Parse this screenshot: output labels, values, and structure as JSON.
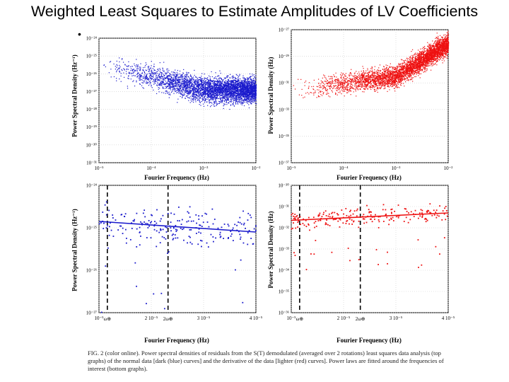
{
  "slide": {
    "title": "Weighted Least Squares to Estimate Amplitudes of LV Coefficients",
    "bullet": "•"
  },
  "colors": {
    "blue": "#1a1acc",
    "red": "#ee1111"
  },
  "chart_data": [
    {
      "id": "top-left",
      "type": "scatter",
      "color": "blue",
      "xlabel": "Fourier Frequency (Hz)",
      "ylabel": "Power Spectral Density (Hz⁻¹)",
      "xlim_log": [
        -5,
        -2
      ],
      "ylim_log": [
        -31,
        -23
      ],
      "xticks": [
        "10⁻⁵",
        "10⁻⁴",
        "10⁻³",
        "10⁻²"
      ],
      "yticks": [
        "10⁻²⁴",
        "10⁻²⁵",
        "10⁻²⁶",
        "10⁻²⁷",
        "10⁻²⁸",
        "10⁻²⁹",
        "10⁻³⁰",
        "10⁻³¹"
      ],
      "trend": {
        "log_psd_at_1e-5": -24.6,
        "log_psd_at_1e-3": -26.3,
        "log_psd_at_1e-2": -26.3
      }
    },
    {
      "id": "top-right",
      "type": "scatter",
      "color": "red",
      "xlabel": "Fourier Frequency (Hz)",
      "ylabel": "Power Spectral Density (Hz)",
      "xlim_log": [
        -5,
        -2
      ],
      "ylim_log": [
        -37,
        -27
      ],
      "xticks": [
        "10⁻⁵",
        "10⁻⁴",
        "10⁻³",
        "10⁻²"
      ],
      "yticks": [
        "10⁻²⁷",
        "10⁻²⁹",
        "10⁻³¹",
        "10⁻³³",
        "10⁻³⁵",
        "10⁻³⁷"
      ],
      "trend": {
        "log_psd_at_1e-5": -31.5,
        "log_psd_at_1e-3": -30.5,
        "log_psd_at_1e-2": -28.0
      }
    },
    {
      "id": "bottom-left",
      "type": "scatter+line",
      "color": "blue",
      "xlabel": "Fourier Frequency (Hz)",
      "ylabel": "Power Spectral Density (Hz⁻¹)",
      "xlim": [
        1e-05,
        4e-05
      ],
      "ylim_log": [
        -27,
        -24
      ],
      "xticks": [
        "10⁻⁵",
        "2 10⁻⁵",
        "3 10⁻⁵",
        "4 10⁻⁵"
      ],
      "xtick_values": [
        1e-05,
        2e-05,
        3e-05,
        4e-05
      ],
      "yticks": [
        "10⁻²⁴",
        "10⁻²⁵",
        "10⁻²⁶",
        "10⁻²⁷"
      ],
      "markers": [
        {
          "label": "ω⊕",
          "x": 1.16e-05
        },
        {
          "label": "2ω⊕",
          "x": 2.32e-05
        }
      ],
      "fit_line": {
        "log_psd_start": -24.85,
        "log_psd_end": -25.1
      }
    },
    {
      "id": "bottom-right",
      "type": "scatter+line",
      "color": "red",
      "xlabel": "Fourier Frequency (Hz)",
      "ylabel": "Power Spectral Density (Hz)",
      "xlim": [
        1e-05,
        4e-05
      ],
      "ylim_log": [
        -36,
        -30
      ],
      "xticks": [
        "10⁻⁵",
        "2 10⁻⁵",
        "3 10⁻⁵",
        "4 10⁻⁵"
      ],
      "xtick_values": [
        1e-05,
        2e-05,
        3e-05,
        4e-05
      ],
      "yticks": [
        "10⁻³⁰",
        "10⁻³¹",
        "10⁻³²",
        "10⁻³³",
        "10⁻³⁴",
        "10⁻³⁵",
        "10⁻³⁶"
      ],
      "markers": [
        {
          "label": "ω⊕",
          "x": 1.16e-05
        },
        {
          "label": "2ω⊕",
          "x": 2.32e-05
        }
      ],
      "fit_line": {
        "log_psd_start": -31.65,
        "log_psd_end": -31.3
      }
    }
  ],
  "caption": {
    "fig_label": "FIG. 2 (color online).",
    "text": "Power spectral densities of residuals from the S(T) demodulated (averaged over 2 rotations) least squares data analysis (top graphs) of the normal data [dark (blue) curves] and the derivative of the data [lighter (red) curves]. Power laws are fitted around the frequencies of interest (bottom graphs)."
  }
}
